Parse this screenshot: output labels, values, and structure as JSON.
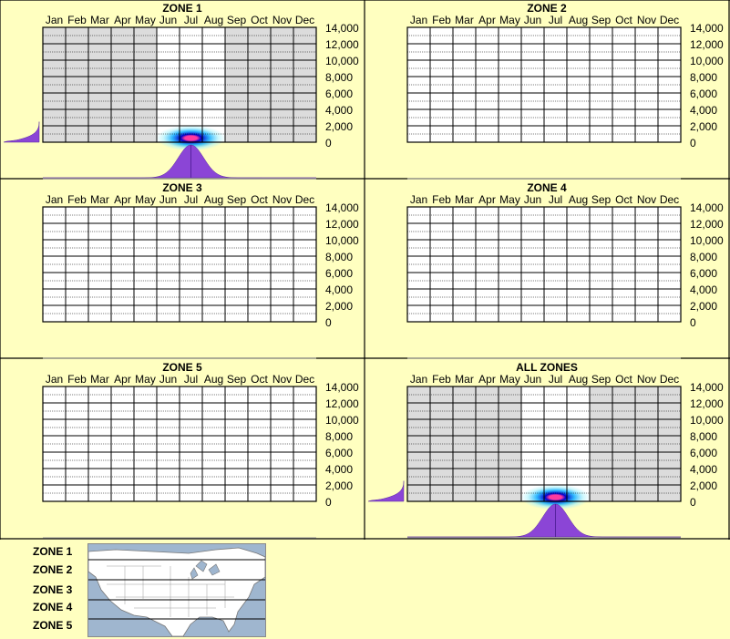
{
  "months": [
    "Jan",
    "Feb",
    "Mar",
    "Apr",
    "May",
    "Jun",
    "Jul",
    "Aug",
    "Sep",
    "Oct",
    "Nov",
    "Dec"
  ],
  "elevation_ticks": [
    "14,000",
    "12,000",
    "10,000",
    "8,000",
    "6,000",
    "4,000",
    "2,000",
    "0"
  ],
  "colors": {
    "background": "#ffffc0",
    "inactive_month": "#dcdcdc",
    "grid": "#000000",
    "distribution": "#8b45d6",
    "density_low": "#aaf2fa",
    "density_mid": "#00aaff",
    "density_high": "#0000cc",
    "density_peak": "#ff3aa0"
  },
  "chart_data": [
    {
      "title": "ZONE 1",
      "type": "heatmap",
      "x": [
        "Jan",
        "Feb",
        "Mar",
        "Apr",
        "May",
        "Jun",
        "Jul",
        "Aug",
        "Sep",
        "Oct",
        "Nov",
        "Dec"
      ],
      "y_range": [
        0,
        14000
      ],
      "active_months": [
        "Jun",
        "Jul",
        "Aug"
      ],
      "peak_month": 6.5,
      "peak_elevation": 500,
      "month_spread": 0.8,
      "elevation_profile": {
        "peak_elevation": 200,
        "max_elevation": 2500
      }
    },
    {
      "title": "ZONE 2",
      "type": "heatmap",
      "x": [
        "Jan",
        "Feb",
        "Mar",
        "Apr",
        "May",
        "Jun",
        "Jul",
        "Aug",
        "Sep",
        "Oct",
        "Nov",
        "Dec"
      ],
      "y_range": [
        0,
        14000
      ],
      "active_months": [],
      "peak_month": null,
      "peak_elevation": null,
      "elevation_profile": null
    },
    {
      "title": "ZONE 3",
      "type": "heatmap",
      "x": [
        "Jan",
        "Feb",
        "Mar",
        "Apr",
        "May",
        "Jun",
        "Jul",
        "Aug",
        "Sep",
        "Oct",
        "Nov",
        "Dec"
      ],
      "y_range": [
        0,
        14000
      ],
      "active_months": [],
      "peak_month": null,
      "peak_elevation": null,
      "elevation_profile": null
    },
    {
      "title": "ZONE 4",
      "type": "heatmap",
      "x": [
        "Jan",
        "Feb",
        "Mar",
        "Apr",
        "May",
        "Jun",
        "Jul",
        "Aug",
        "Sep",
        "Oct",
        "Nov",
        "Dec"
      ],
      "y_range": [
        0,
        14000
      ],
      "active_months": [],
      "peak_month": null,
      "peak_elevation": null,
      "elevation_profile": null
    },
    {
      "title": "ZONE 5",
      "type": "heatmap",
      "x": [
        "Jan",
        "Feb",
        "Mar",
        "Apr",
        "May",
        "Jun",
        "Jul",
        "Aug",
        "Sep",
        "Oct",
        "Nov",
        "Dec"
      ],
      "y_range": [
        0,
        14000
      ],
      "active_months": [],
      "peak_month": null,
      "peak_elevation": null,
      "elevation_profile": null
    },
    {
      "title": "ALL ZONES",
      "type": "heatmap",
      "x": [
        "Jan",
        "Feb",
        "Mar",
        "Apr",
        "May",
        "Jun",
        "Jul",
        "Aug",
        "Sep",
        "Oct",
        "Nov",
        "Dec"
      ],
      "y_range": [
        0,
        14000
      ],
      "active_months": [
        "Jun",
        "Jul",
        "Aug"
      ],
      "peak_month": 6.5,
      "peak_elevation": 500,
      "month_spread": 0.8,
      "elevation_profile": {
        "peak_elevation": 200,
        "max_elevation": 2500
      }
    }
  ],
  "legend": {
    "zones": [
      "ZONE 1",
      "ZONE 2",
      "ZONE 3",
      "ZONE 4",
      "ZONE 5"
    ],
    "map": "north-america-map"
  }
}
